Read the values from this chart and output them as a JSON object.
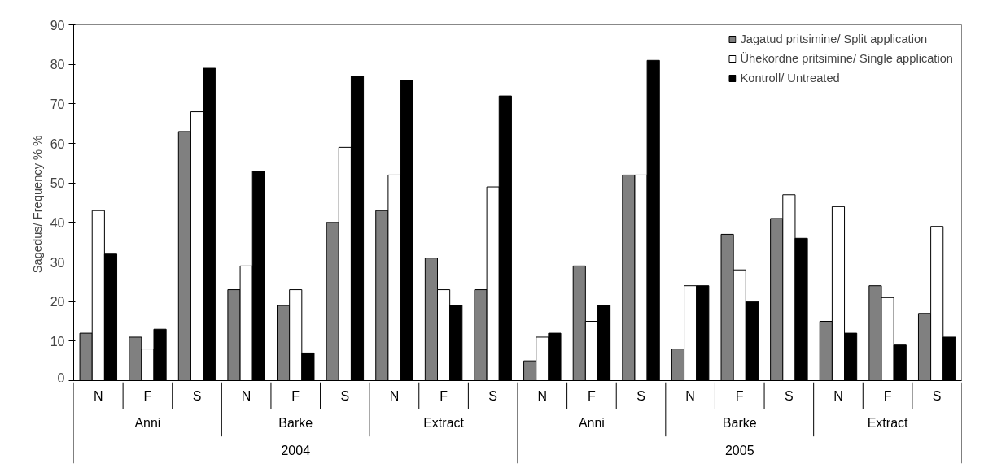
{
  "chart_data": {
    "type": "bar",
    "ylabel": "Sagedus/ Frequency %  %",
    "categories": [
      "N",
      "F",
      "S",
      "N",
      "F",
      "S",
      "N",
      "F",
      "S",
      "N",
      "F",
      "S",
      "N",
      "F",
      "S",
      "N",
      "F",
      "S"
    ],
    "series": [
      {
        "name": "Jagatud pritsimine/ Split application",
        "color": "#808080",
        "values": [
          12,
          11,
          63,
          23,
          19,
          40,
          43,
          31,
          23,
          5,
          29,
          52,
          8,
          37,
          41,
          15,
          24,
          17
        ]
      },
      {
        "name": "Ühekordne pritsimine/ Single application",
        "color": "#ffffff",
        "values": [
          43,
          8,
          68,
          29,
          23,
          59,
          52,
          23,
          49,
          11,
          15,
          52,
          24,
          28,
          47,
          44,
          21,
          39
        ]
      },
      {
        "name": "Kontroll/ Untreated",
        "color": "#000000",
        "values": [
          32,
          13,
          79,
          53,
          7,
          77,
          76,
          19,
          72,
          12,
          19,
          81,
          24,
          20,
          36,
          12,
          9,
          11
        ]
      }
    ],
    "annotations": [
      "Anni",
      "Barke",
      "Extract",
      "Anni",
      "Barke",
      "Extract",
      "2004",
      "2005"
    ],
    "ylim": [
      0,
      90
    ],
    "yticks": [
      0,
      10,
      20,
      30,
      40,
      50,
      60,
      70,
      80,
      90
    ],
    "grid": false,
    "legend": "top right"
  }
}
